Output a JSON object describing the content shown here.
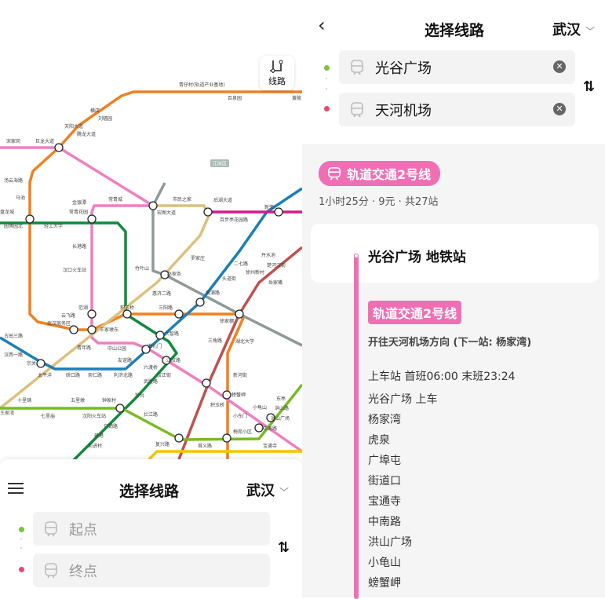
{
  "map": {
    "route_button_label": "线路",
    "district_tag": "江岸区",
    "stations": [
      "青仔村(轨道产业基地)",
      "百泉园",
      "黄陂",
      "横店",
      "刘辐园",
      "天阳大道",
      "腾龙大道",
      "宋家岗",
      "巨龙大道",
      "汤云海路",
      "马池",
      "盘龙城",
      "金银潭",
      "常青花园",
      "常青城",
      "宏图大道",
      "市民之家",
      "后湖大道",
      "百步亭花园路",
      "新荣",
      "园博园北",
      "轻工大学",
      "长港路",
      "汉口火车站",
      "竹叶山",
      "赵家条",
      "黄浦路",
      "二七路",
      "丹水池",
      "徐州新村",
      "头道街",
      "罗家庄",
      "惠济二路",
      "三阳路",
      "徐家棚",
      "循礼门",
      "大智路",
      "江汉路",
      "中山公园",
      "青年路",
      "王家墩东",
      "武汉商务区",
      "云飞路",
      "范湖",
      "积玉桥",
      "三角路",
      "湖北大学",
      "螃蟹岬",
      "小龟山",
      "洪山广场",
      "中南路",
      "宝通寺",
      "钟家村",
      "琴台",
      "汉阳火车站",
      "五里墩",
      "七里庙",
      "十里铺",
      "王家湾",
      "太平洋",
      "硚口路",
      "崇仁路",
      "利济北路",
      "友谊路",
      "宗关",
      "汉西一路",
      "古田三路",
      "六渡桥",
      "汉正街",
      "武胜路",
      "拦江路",
      "马鹦路",
      "建港",
      "前进村",
      "复兴路",
      "首义路",
      "洪山路",
      "梅苑小区",
      "东亭",
      "新河街",
      "小东门",
      "积玉桥",
      "岳家嘴",
      "楚河汉街"
    ]
  },
  "left_panel": {
    "title": "选择线路",
    "city": "武汉",
    "start_placeholder": "起点",
    "end_placeholder": "终点",
    "swap_icon": "⇅"
  },
  "right_panel": {
    "title": "选择线路",
    "city": "武汉",
    "start": "光谷广场",
    "end": "天河机场",
    "swap_icon": "⇅",
    "line_name": "轨道交通2号线",
    "summary": {
      "duration": "1小时25分",
      "fare": "9元",
      "stops": "共27站"
    },
    "origin_station": "光谷广场 地铁站",
    "line_badge": "轨道交通2号线",
    "direction": "开往天河机场方向 (下一站: 杨家湾)",
    "schedule": "上车站 首班06:00 末班23:24",
    "stop_list": [
      "光谷广场 上车",
      "杨家湾",
      "虎泉",
      "广埠屯",
      "街道口",
      "宝通寺",
      "中南路",
      "洪山广场",
      "小龟山",
      "螃蟹岬"
    ],
    "line_color": "#f06fb4"
  }
}
